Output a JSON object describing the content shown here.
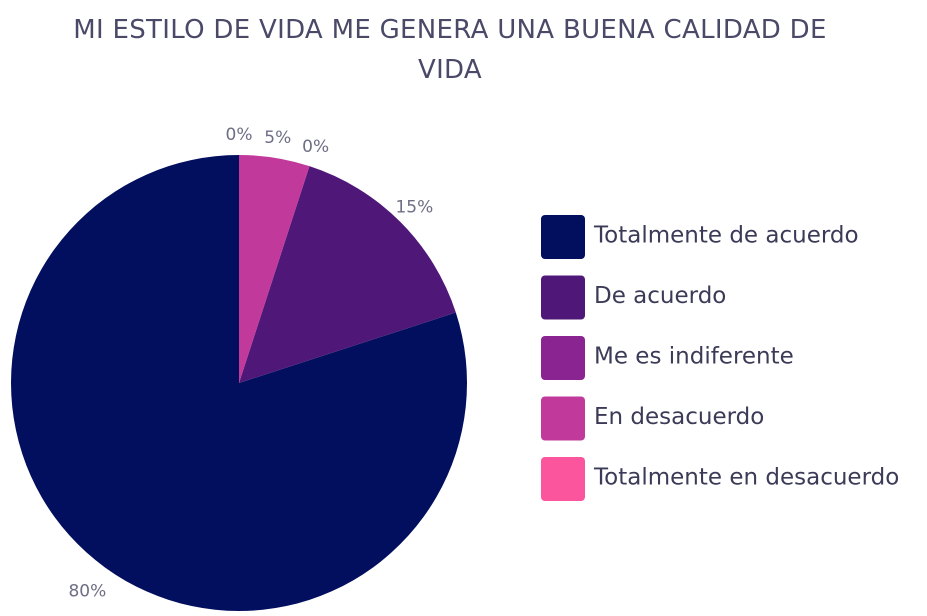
{
  "chart_data": {
    "type": "pie",
    "title": "MI ESTILO DE VIDA ME GENERA UNA BUENA CALIDAD DE VIDA",
    "categories": [
      "Totalmente de acuerdo",
      "De acuerdo",
      "Me es indiferente",
      "En desacuerdo",
      "Totalmente en desacuerdo"
    ],
    "values": [
      80,
      15,
      0,
      5,
      0
    ],
    "value_labels": [
      "80%",
      "15%",
      "0%",
      "5%",
      "0%"
    ],
    "colors": [
      "#020f5f",
      "#4f1777",
      "#8a2490",
      "#c0399b",
      "#fb559e"
    ],
    "legend": "right"
  }
}
